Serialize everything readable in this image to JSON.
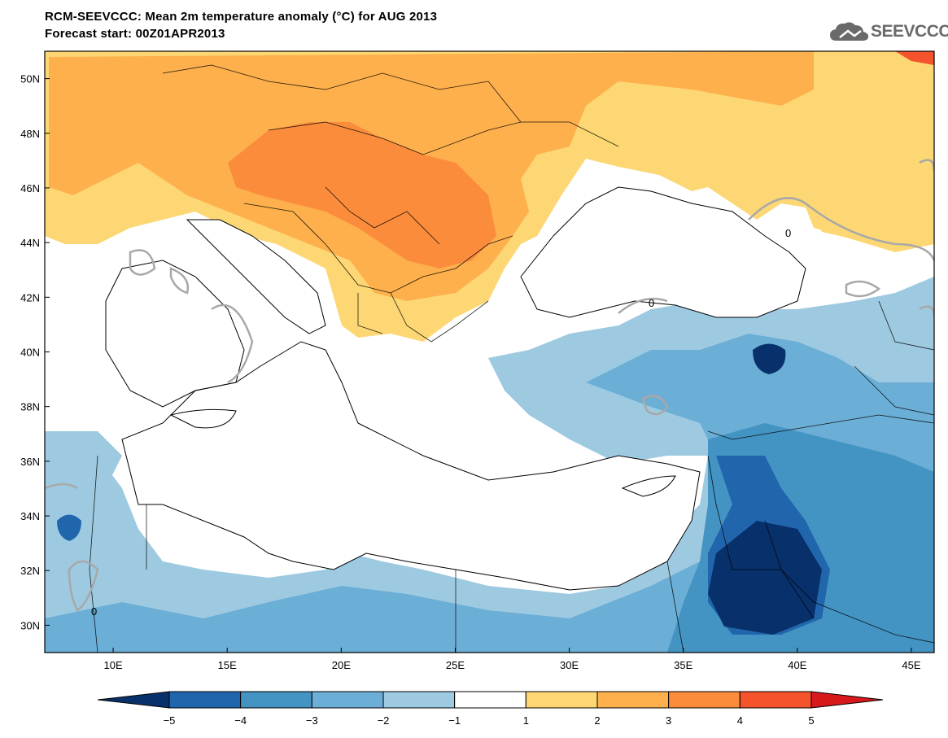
{
  "title": {
    "line1": "RCM-SEEVCCC: Mean 2m temperature anomaly (°C) for AUG 2013",
    "line2": "Forecast start: 00Z01APR2013"
  },
  "logo": {
    "text": "SEEVCCC",
    "icon": "cloud-icon"
  },
  "map": {
    "lon_range": [
      7,
      46
    ],
    "lat_range": [
      29,
      51
    ],
    "lon_ticks": [
      {
        "value": 10,
        "label": "10E"
      },
      {
        "value": 15,
        "label": "15E"
      },
      {
        "value": 20,
        "label": "20E"
      },
      {
        "value": 25,
        "label": "25E"
      },
      {
        "value": 30,
        "label": "30E"
      },
      {
        "value": 35,
        "label": "35E"
      },
      {
        "value": 40,
        "label": "40E"
      },
      {
        "value": 45,
        "label": "45E"
      }
    ],
    "lat_ticks": [
      {
        "value": 30,
        "label": "30N"
      },
      {
        "value": 32,
        "label": "32N"
      },
      {
        "value": 34,
        "label": "34N"
      },
      {
        "value": 36,
        "label": "36N"
      },
      {
        "value": 38,
        "label": "38N"
      },
      {
        "value": 40,
        "label": "40N"
      },
      {
        "value": 42,
        "label": "42N"
      },
      {
        "value": 44,
        "label": "44N"
      },
      {
        "value": 46,
        "label": "46N"
      },
      {
        "value": 48,
        "label": "48N"
      },
      {
        "value": 50,
        "label": "50N"
      }
    ],
    "contour_label": "0"
  },
  "colorbar": {
    "levels": [
      "−5",
      "−4",
      "−3",
      "−2",
      "−1",
      "1",
      "2",
      "3",
      "4",
      "5"
    ],
    "colors": [
      "#08306b",
      "#2166ac",
      "#4393c3",
      "#6baed6",
      "#9ecae1",
      "#ffffff",
      "#fdd774",
      "#fdb04c",
      "#fb8c3c",
      "#f4532b",
      "#d7191c"
    ]
  }
}
